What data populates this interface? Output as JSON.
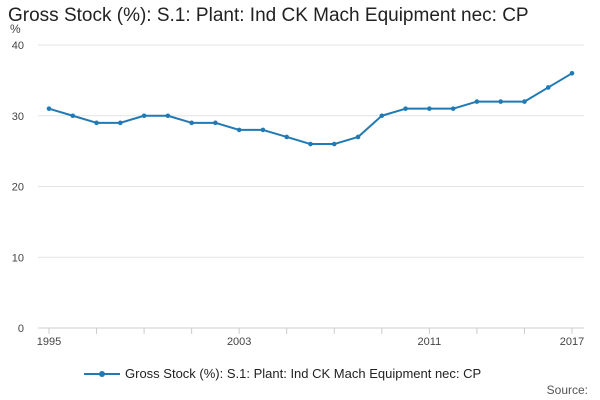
{
  "chart_data": {
    "type": "line",
    "title": "Gross Stock (%): S.1: Plant: Ind CK Mach Equipment nec: CP",
    "ylabel": "%",
    "xlabel": "",
    "ylim": [
      0,
      40
    ],
    "yticks": [
      0,
      10,
      20,
      30,
      40
    ],
    "xlim": [
      1995,
      2017
    ],
    "xticks_labeled": [
      1995,
      2003,
      2011,
      2017
    ],
    "grid": true,
    "legend_position": "bottom",
    "series": [
      {
        "name": "Gross Stock (%): S.1: Plant: Ind CK Mach Equipment nec: CP",
        "color": "#1f7ab5",
        "x": [
          1995,
          1996,
          1997,
          1998,
          1999,
          2000,
          2001,
          2002,
          2003,
          2004,
          2005,
          2006,
          2007,
          2008,
          2009,
          2010,
          2011,
          2012,
          2013,
          2014,
          2015,
          2016,
          2017
        ],
        "values": [
          31,
          30,
          29,
          29,
          30,
          30,
          29,
          29,
          28,
          28,
          27,
          26,
          26,
          27,
          30,
          31,
          31,
          31,
          32,
          32,
          32,
          34,
          36
        ]
      }
    ]
  },
  "footer": {
    "source_label": "Source:"
  }
}
